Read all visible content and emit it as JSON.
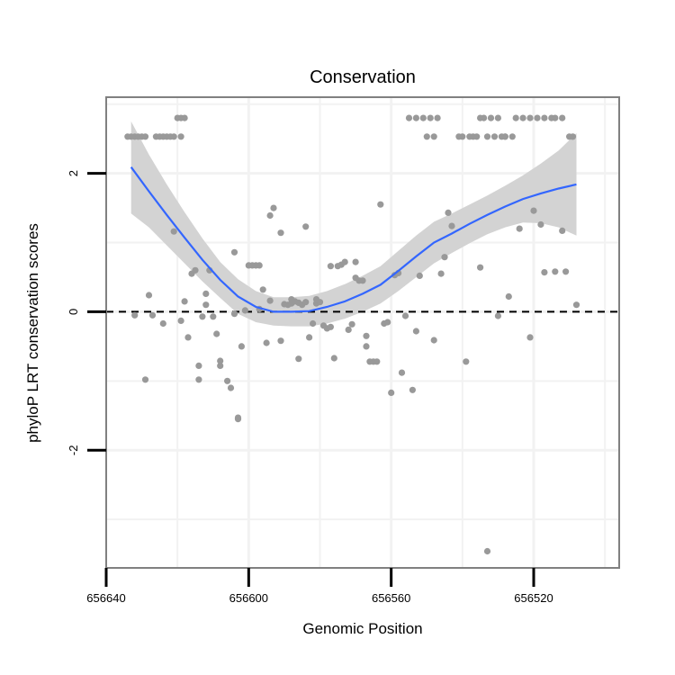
{
  "chart_data": {
    "type": "scatter",
    "title": "Conservation",
    "xlabel": "Genomic Position",
    "ylabel": "phyloP LRT conservation scores",
    "x_axis_reversed": true,
    "xlim": [
      656640,
      656496
    ],
    "ylim": [
      -3.7,
      3.1
    ],
    "x_ticks": [
      656640,
      656600,
      656560,
      656520
    ],
    "x_tick_labels": [
      "656640",
      "656600",
      "656560",
      "656520"
    ],
    "y_ticks": [
      -2,
      0,
      2
    ],
    "y_tick_labels": [
      "-2",
      "0",
      "2"
    ],
    "minor_y_ticks": [
      -3,
      -1,
      1,
      3
    ],
    "minor_x_ticks": [
      656620,
      656580,
      656540,
      656500
    ],
    "grid": true,
    "reference_line": {
      "y": 0,
      "style": "dashed",
      "color": "#000000"
    },
    "colors": {
      "points": "#999999",
      "smooth_line": "#3366FF",
      "ribbon": "#D3D3D3",
      "grid": "#F2F2F2",
      "panel_border": "#808080"
    },
    "points": [
      [
        656634,
        2.53
      ],
      [
        656633,
        2.53
      ],
      [
        656632,
        2.53
      ],
      [
        656631,
        2.53
      ],
      [
        656630,
        2.53
      ],
      [
        656629,
        2.53
      ],
      [
        656626,
        2.53
      ],
      [
        656625,
        2.53
      ],
      [
        656624,
        2.53
      ],
      [
        656623,
        2.53
      ],
      [
        656622,
        2.53
      ],
      [
        656621,
        2.53
      ],
      [
        656620,
        2.8
      ],
      [
        656619,
        2.53
      ],
      [
        656619,
        2.8
      ],
      [
        656618,
        2.8
      ],
      [
        656632,
        -0.05
      ],
      [
        656629,
        -0.98
      ],
      [
        656628,
        0.24
      ],
      [
        656627,
        -0.05
      ],
      [
        656624,
        -0.17
      ],
      [
        656621,
        1.16
      ],
      [
        656619,
        -0.13
      ],
      [
        656618,
        0.15
      ],
      [
        656617,
        -0.37
      ],
      [
        656616,
        0.55
      ],
      [
        656615,
        0.6
      ],
      [
        656614,
        -0.98
      ],
      [
        656614,
        -0.78
      ],
      [
        656613,
        -0.07
      ],
      [
        656612,
        0.1
      ],
      [
        656612,
        0.26
      ],
      [
        656611,
        0.6
      ],
      [
        656610,
        -0.07
      ],
      [
        656609,
        -0.32
      ],
      [
        656608,
        -0.78
      ],
      [
        656608,
        -0.71
      ],
      [
        656606,
        -1.0
      ],
      [
        656605,
        -1.1
      ],
      [
        656604,
        -0.03
      ],
      [
        656604,
        0.86
      ],
      [
        656603,
        -1.53
      ],
      [
        656603,
        -1.55
      ],
      [
        656602,
        -0.5
      ],
      [
        656601,
        0.02
      ],
      [
        656600,
        0.67
      ],
      [
        656599,
        0.67
      ],
      [
        656598,
        0.67
      ],
      [
        656597,
        0.67
      ],
      [
        656597,
        0.04
      ],
      [
        656596,
        0.32
      ],
      [
        656595,
        -0.45
      ],
      [
        656594,
        1.39
      ],
      [
        656594,
        0.16
      ],
      [
        656593,
        1.5
      ],
      [
        656591,
        1.14
      ],
      [
        656591,
        -0.42
      ],
      [
        656590,
        0.11
      ],
      [
        656589,
        0.1
      ],
      [
        656588,
        0.12
      ],
      [
        656588,
        0.18
      ],
      [
        656587,
        0.15
      ],
      [
        656586,
        0.13
      ],
      [
        656586,
        -0.68
      ],
      [
        656585,
        0.1
      ],
      [
        656584,
        1.23
      ],
      [
        656584,
        0.14
      ],
      [
        656583,
        -0.37
      ],
      [
        656582,
        -0.17
      ],
      [
        656581,
        0.12
      ],
      [
        656581,
        0.18
      ],
      [
        656580,
        0.14
      ],
      [
        656579,
        -0.2
      ],
      [
        656578,
        -0.24
      ],
      [
        656577,
        0.66
      ],
      [
        656577,
        -0.22
      ],
      [
        656576,
        -0.67
      ],
      [
        656575,
        0.66
      ],
      [
        656574,
        0.68
      ],
      [
        656573,
        0.72
      ],
      [
        656572,
        -0.26
      ],
      [
        656571,
        -0.18
      ],
      [
        656570,
        0.72
      ],
      [
        656570,
        0.49
      ],
      [
        656569,
        0.45
      ],
      [
        656568,
        0.45
      ],
      [
        656567,
        -0.5
      ],
      [
        656567,
        -0.35
      ],
      [
        656566,
        -0.72
      ],
      [
        656565,
        -0.72
      ],
      [
        656564,
        -0.72
      ],
      [
        656563,
        1.55
      ],
      [
        656562,
        -0.17
      ],
      [
        656561,
        -0.15
      ],
      [
        656560,
        -1.17
      ],
      [
        656559,
        0.53
      ],
      [
        656558,
        0.56
      ],
      [
        656557,
        -0.88
      ],
      [
        656556,
        -0.06
      ],
      [
        656555,
        2.8
      ],
      [
        656554,
        -1.13
      ],
      [
        656553,
        2.8
      ],
      [
        656553,
        -0.28
      ],
      [
        656552,
        0.52
      ],
      [
        656551,
        2.8
      ],
      [
        656550,
        2.53
      ],
      [
        656549,
        2.8
      ],
      [
        656548,
        2.53
      ],
      [
        656548,
        -0.41
      ],
      [
        656547,
        2.8
      ],
      [
        656546,
        0.55
      ],
      [
        656545,
        0.79
      ],
      [
        656544,
        1.43
      ],
      [
        656543,
        1.24
      ],
      [
        656541,
        2.53
      ],
      [
        656540,
        2.53
      ],
      [
        656539,
        -0.72
      ],
      [
        656538,
        2.53
      ],
      [
        656537,
        2.53
      ],
      [
        656536,
        2.53
      ],
      [
        656535,
        0.64
      ],
      [
        656535,
        2.8
      ],
      [
        656534,
        2.8
      ],
      [
        656533,
        2.53
      ],
      [
        656533,
        -3.46
      ],
      [
        656532,
        2.8
      ],
      [
        656531,
        2.53
      ],
      [
        656530,
        2.8
      ],
      [
        656530,
        -0.06
      ],
      [
        656529,
        2.53
      ],
      [
        656528,
        2.53
      ],
      [
        656528,
        2.53
      ],
      [
        656527,
        0.22
      ],
      [
        656526,
        2.53
      ],
      [
        656525,
        2.8
      ],
      [
        656524,
        1.2
      ],
      [
        656523,
        2.8
      ],
      [
        656521,
        2.8
      ],
      [
        656521,
        -0.37
      ],
      [
        656520,
        1.46
      ],
      [
        656519,
        2.8
      ],
      [
        656518,
        1.26
      ],
      [
        656517,
        2.8
      ],
      [
        656517,
        0.57
      ],
      [
        656515,
        2.8
      ],
      [
        656514,
        0.58
      ],
      [
        656514,
        2.8
      ],
      [
        656512,
        2.8
      ],
      [
        656512,
        1.17
      ],
      [
        656511,
        0.58
      ],
      [
        656510,
        2.53
      ],
      [
        656509,
        2.53
      ],
      [
        656508,
        0.1
      ]
    ],
    "smooth": {
      "x": [
        656633,
        656628,
        656623,
        656618,
        656613,
        656608,
        656603,
        656598,
        656593,
        656588,
        656583,
        656578,
        656573,
        656568,
        656563,
        656558,
        656553,
        656548,
        656543,
        656538,
        656533,
        656528,
        656523,
        656518,
        656513,
        656508
      ],
      "y": [
        2.09,
        1.74,
        1.4,
        1.07,
        0.75,
        0.46,
        0.22,
        0.07,
        0.0,
        0.0,
        0.01,
        0.07,
        0.15,
        0.26,
        0.39,
        0.59,
        0.8,
        1.0,
        1.13,
        1.27,
        1.4,
        1.52,
        1.63,
        1.71,
        1.78,
        1.84
      ],
      "lower": [
        1.42,
        1.22,
        0.96,
        0.7,
        0.44,
        0.2,
        -0.03,
        -0.15,
        -0.2,
        -0.21,
        -0.21,
        -0.17,
        -0.1,
        0.0,
        0.12,
        0.3,
        0.5,
        0.7,
        0.85,
        0.99,
        1.12,
        1.22,
        1.29,
        1.28,
        1.22,
        1.1
      ],
      "upper": [
        2.75,
        2.27,
        1.84,
        1.44,
        1.06,
        0.72,
        0.47,
        0.3,
        0.21,
        0.21,
        0.23,
        0.3,
        0.4,
        0.52,
        0.66,
        0.88,
        1.1,
        1.3,
        1.42,
        1.55,
        1.68,
        1.82,
        1.97,
        2.14,
        2.33,
        2.58
      ]
    }
  }
}
